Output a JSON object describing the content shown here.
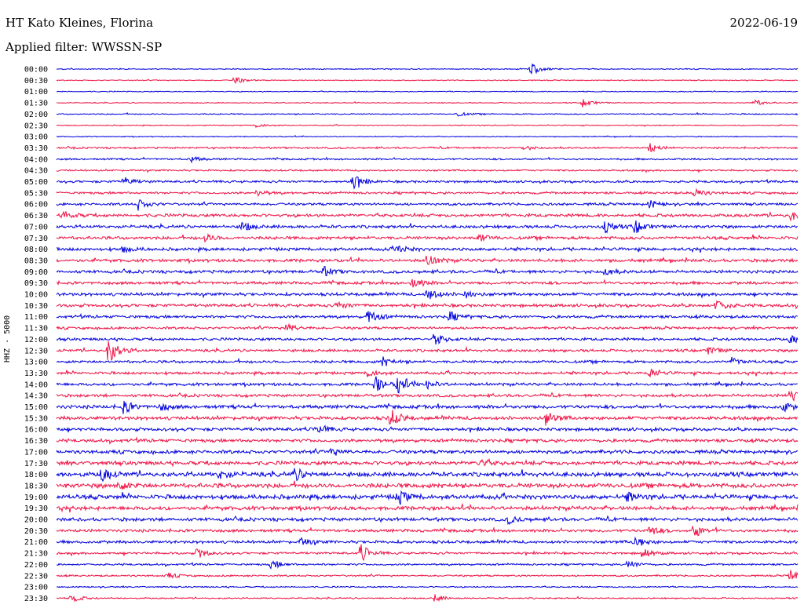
{
  "header": {
    "station": "HT Kato Kleines, Florina",
    "date": "2022-06-19",
    "filter": "Applied filter: WWSSN-SP"
  },
  "chart_data": {
    "type": "line",
    "title": "HT Kato Kleines, Florina",
    "ylabel": "HHZ - 5000",
    "xlabel": "",
    "colors": [
      "#0000dd",
      "#ee1144"
    ],
    "tick_labels": [
      "00:00",
      "00:30",
      "01:00",
      "01:30",
      "02:00",
      "02:30",
      "03:00",
      "03:30",
      "04:00",
      "04:30",
      "05:00",
      "05:30",
      "06:00",
      "06:30",
      "07:00",
      "07:30",
      "08:00",
      "08:30",
      "09:00",
      "09:30",
      "10:00",
      "10:30",
      "11:00",
      "11:30",
      "12:00",
      "12:30",
      "13:00",
      "13:30",
      "14:00",
      "14:30",
      "15:00",
      "15:30",
      "16:00",
      "16:30",
      "17:00",
      "17:30",
      "18:00",
      "18:30",
      "19:00",
      "19:30",
      "20:00",
      "20:30",
      "21:00",
      "21:30",
      "22:00",
      "22:30",
      "23:00",
      "23:30"
    ],
    "noise_level": [
      0.5,
      0.5,
      0.5,
      0.5,
      0.6,
      0.5,
      0.5,
      0.9,
      0.9,
      0.9,
      1.2,
      1.2,
      1.3,
      1.6,
      1.6,
      1.6,
      1.6,
      1.6,
      1.6,
      1.5,
      1.6,
      1.6,
      1.5,
      1.3,
      1.4,
      1.4,
      1.4,
      1.4,
      1.5,
      1.5,
      1.8,
      1.8,
      1.7,
      1.7,
      1.8,
      2.0,
      2.3,
      2.4,
      2.3,
      2.0,
      1.8,
      1.5,
      1.5,
      1.2,
      1.0,
      0.9,
      0.7,
      0.7
    ],
    "events": [
      {
        "row": 0,
        "pos": 0.64,
        "amp": 8
      },
      {
        "row": 1,
        "pos": 0.24,
        "amp": 5
      },
      {
        "row": 3,
        "pos": 0.71,
        "amp": 6
      },
      {
        "row": 3,
        "pos": 0.94,
        "amp": 5
      },
      {
        "row": 4,
        "pos": 0.54,
        "amp": 3
      },
      {
        "row": 5,
        "pos": 0.27,
        "amp": 3
      },
      {
        "row": 7,
        "pos": 0.63,
        "amp": 3
      },
      {
        "row": 7,
        "pos": 0.8,
        "amp": 6
      },
      {
        "row": 8,
        "pos": 0.18,
        "amp": 4
      },
      {
        "row": 10,
        "pos": 0.09,
        "amp": 6
      },
      {
        "row": 10,
        "pos": 0.4,
        "amp": 10
      },
      {
        "row": 11,
        "pos": 0.27,
        "amp": 4
      },
      {
        "row": 11,
        "pos": 0.86,
        "amp": 6
      },
      {
        "row": 12,
        "pos": 0.11,
        "amp": 7
      },
      {
        "row": 12,
        "pos": 0.8,
        "amp": 5
      },
      {
        "row": 13,
        "pos": 0.01,
        "amp": 5
      },
      {
        "row": 13,
        "pos": 0.99,
        "amp": 6
      },
      {
        "row": 14,
        "pos": 0.25,
        "amp": 6
      },
      {
        "row": 14,
        "pos": 0.74,
        "amp": 7
      },
      {
        "row": 14,
        "pos": 0.78,
        "amp": 9
      },
      {
        "row": 15,
        "pos": 0.2,
        "amp": 5
      },
      {
        "row": 15,
        "pos": 0.57,
        "amp": 5
      },
      {
        "row": 16,
        "pos": 0.09,
        "amp": 4
      },
      {
        "row": 16,
        "pos": 0.46,
        "amp": 5
      },
      {
        "row": 17,
        "pos": 0.5,
        "amp": 9
      },
      {
        "row": 18,
        "pos": 0.36,
        "amp": 6
      },
      {
        "row": 18,
        "pos": 0.74,
        "amp": 5
      },
      {
        "row": 19,
        "pos": 0.48,
        "amp": 7
      },
      {
        "row": 20,
        "pos": 0.5,
        "amp": 9
      },
      {
        "row": 20,
        "pos": 0.55,
        "amp": 5
      },
      {
        "row": 21,
        "pos": 0.38,
        "amp": 5
      },
      {
        "row": 21,
        "pos": 0.89,
        "amp": 8
      },
      {
        "row": 22,
        "pos": 0.42,
        "amp": 10
      },
      {
        "row": 22,
        "pos": 0.53,
        "amp": 6
      },
      {
        "row": 23,
        "pos": 0.31,
        "amp": 6
      },
      {
        "row": 24,
        "pos": 0.51,
        "amp": 8
      },
      {
        "row": 24,
        "pos": 0.99,
        "amp": 5
      },
      {
        "row": 25,
        "pos": 0.07,
        "amp": 18
      },
      {
        "row": 25,
        "pos": 0.88,
        "amp": 5
      },
      {
        "row": 26,
        "pos": 0.44,
        "amp": 6
      },
      {
        "row": 26,
        "pos": 0.91,
        "amp": 5
      },
      {
        "row": 27,
        "pos": 0.42,
        "amp": 5
      },
      {
        "row": 27,
        "pos": 0.8,
        "amp": 6
      },
      {
        "row": 28,
        "pos": 0.43,
        "amp": 10
      },
      {
        "row": 28,
        "pos": 0.46,
        "amp": 12
      },
      {
        "row": 28,
        "pos": 0.5,
        "amp": 6
      },
      {
        "row": 29,
        "pos": 0.99,
        "amp": 8
      },
      {
        "row": 30,
        "pos": 0.09,
        "amp": 8
      },
      {
        "row": 30,
        "pos": 0.14,
        "amp": 5
      },
      {
        "row": 30,
        "pos": 0.98,
        "amp": 6
      },
      {
        "row": 31,
        "pos": 0.45,
        "amp": 12
      },
      {
        "row": 31,
        "pos": 0.66,
        "amp": 9
      },
      {
        "row": 32,
        "pos": 0.35,
        "amp": 7
      },
      {
        "row": 34,
        "pos": 0.37,
        "amp": 5
      },
      {
        "row": 35,
        "pos": 0.57,
        "amp": 5
      },
      {
        "row": 36,
        "pos": 0.06,
        "amp": 8
      },
      {
        "row": 36,
        "pos": 0.22,
        "amp": 6
      },
      {
        "row": 36,
        "pos": 0.32,
        "amp": 8
      },
      {
        "row": 37,
        "pos": 0.08,
        "amp": 7
      },
      {
        "row": 38,
        "pos": 0.46,
        "amp": 10
      },
      {
        "row": 38,
        "pos": 0.77,
        "amp": 6
      },
      {
        "row": 40,
        "pos": 0.61,
        "amp": 5
      },
      {
        "row": 41,
        "pos": 0.8,
        "amp": 7
      },
      {
        "row": 41,
        "pos": 0.86,
        "amp": 9
      },
      {
        "row": 42,
        "pos": 0.33,
        "amp": 5
      },
      {
        "row": 42,
        "pos": 0.78,
        "amp": 8
      },
      {
        "row": 43,
        "pos": 0.19,
        "amp": 7
      },
      {
        "row": 43,
        "pos": 0.41,
        "amp": 12
      },
      {
        "row": 43,
        "pos": 0.79,
        "amp": 7
      },
      {
        "row": 44,
        "pos": 0.29,
        "amp": 6
      },
      {
        "row": 44,
        "pos": 0.77,
        "amp": 6
      },
      {
        "row": 45,
        "pos": 0.15,
        "amp": 4
      },
      {
        "row": 45,
        "pos": 0.99,
        "amp": 7
      },
      {
        "row": 47,
        "pos": 0.02,
        "amp": 6
      },
      {
        "row": 47,
        "pos": 0.51,
        "amp": 5
      }
    ]
  }
}
